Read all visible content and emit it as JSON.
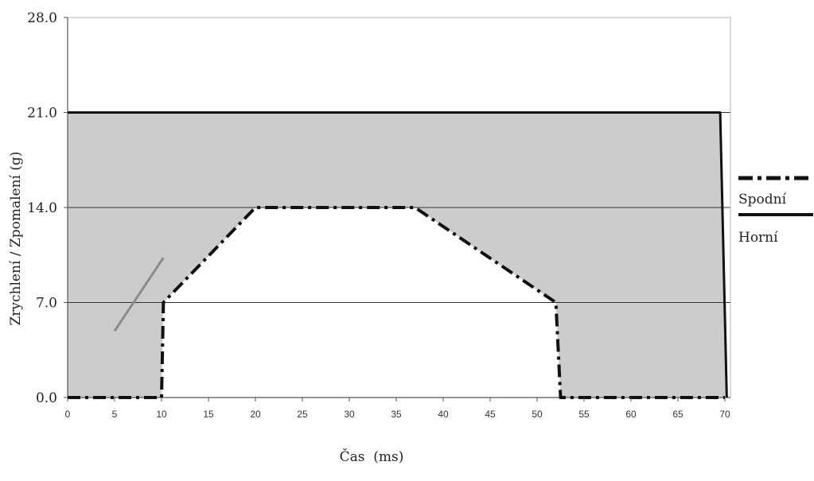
{
  "chart_data": {
    "type": "area",
    "title": "",
    "xlabel": "Čas  (ms)",
    "ylabel": "Zrychlení / Zpomalení (g)",
    "xlim": [
      0,
      70.5
    ],
    "ylim": [
      0,
      28
    ],
    "xticks": [
      "0",
      "5",
      "10",
      "15",
      "20",
      "25",
      "30",
      "35",
      "40",
      "45",
      "50",
      "55",
      "60",
      "65",
      "70"
    ],
    "yticks": [
      "0.0",
      "7.0",
      "14.0",
      "21.0",
      "28.0"
    ],
    "grid": "horizontal at 7, 14, 21",
    "legend_placement": "right",
    "colors": {
      "corridor_fill": "#cccccc",
      "lower_line": "#111111",
      "upper_line": "#111111",
      "slope_marker": "#8a8a8a"
    },
    "series": [
      {
        "name": "Spodní",
        "style": "dash-dot",
        "x": [
          0,
          10,
          10.2,
          20,
          37,
          52,
          52.5,
          70
        ],
        "y": [
          0,
          0,
          7,
          14,
          14,
          7,
          0,
          0
        ]
      },
      {
        "name": "Horní",
        "style": "solid",
        "x": [
          0,
          69.5,
          70.2
        ],
        "y": [
          21,
          21,
          0
        ]
      }
    ],
    "annotations": [
      {
        "type": "slope-marker",
        "x": [
          5,
          10.2
        ],
        "y": [
          4.9,
          10.3
        ]
      }
    ]
  }
}
